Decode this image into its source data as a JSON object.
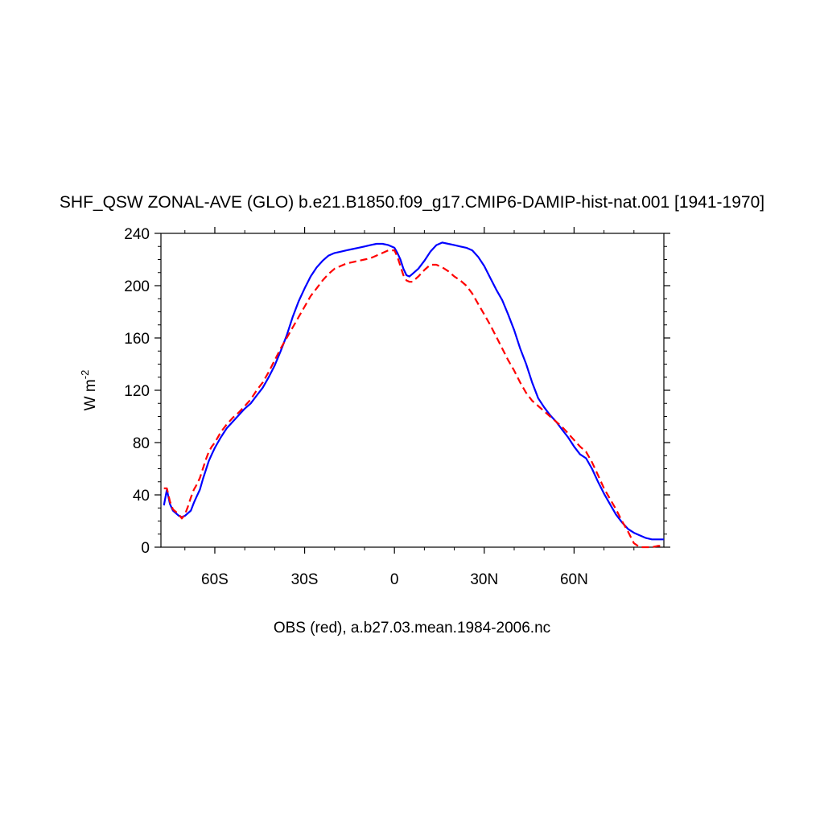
{
  "chart_data": {
    "type": "line",
    "title": "SHF_QSW ZONAL-AVE (GLO) b.e21.B1850.f09_g17.CMIP6-DAMIP-hist-nat.001 [1941-1970]",
    "xlabel": "OBS (red), a.b27.03.mean.1984-2006.nc",
    "ylabel": "W m",
    "ylabel_sup": "-2",
    "xlim": [
      -78,
      90
    ],
    "ylim": [
      0,
      240
    ],
    "x_ticks": [
      {
        "value": -60,
        "label": "60S"
      },
      {
        "value": -30,
        "label": "30S"
      },
      {
        "value": 0,
        "label": "0"
      },
      {
        "value": 30,
        "label": "30N"
      },
      {
        "value": 60,
        "label": "60N"
      }
    ],
    "y_ticks": [
      {
        "value": 0,
        "label": "0"
      },
      {
        "value": 40,
        "label": "40"
      },
      {
        "value": 80,
        "label": "80"
      },
      {
        "value": 120,
        "label": "120"
      },
      {
        "value": 160,
        "label": "160"
      },
      {
        "value": 200,
        "label": "200"
      },
      {
        "value": 240,
        "label": "240"
      }
    ],
    "series": [
      {
        "color": "#0000ff",
        "dash": "solid",
        "points": [
          [
            -77,
            32
          ],
          [
            -76,
            44
          ],
          [
            -75,
            33
          ],
          [
            -74,
            28
          ],
          [
            -73,
            26
          ],
          [
            -72,
            24
          ],
          [
            -71,
            23
          ],
          [
            -70,
            24
          ],
          [
            -69,
            26
          ],
          [
            -68,
            28
          ],
          [
            -67,
            34
          ],
          [
            -66,
            39
          ],
          [
            -65,
            44
          ],
          [
            -64,
            52
          ],
          [
            -63,
            59
          ],
          [
            -62,
            66
          ],
          [
            -61,
            71
          ],
          [
            -60,
            76
          ],
          [
            -58,
            84
          ],
          [
            -56,
            91
          ],
          [
            -54,
            96
          ],
          [
            -52,
            101
          ],
          [
            -50,
            106
          ],
          [
            -48,
            110
          ],
          [
            -46,
            116
          ],
          [
            -44,
            122
          ],
          [
            -42,
            130
          ],
          [
            -40,
            139
          ],
          [
            -38,
            150
          ],
          [
            -36,
            162
          ],
          [
            -34,
            176
          ],
          [
            -32,
            188
          ],
          [
            -30,
            198
          ],
          [
            -28,
            207
          ],
          [
            -26,
            214
          ],
          [
            -24,
            219
          ],
          [
            -22,
            223
          ],
          [
            -20,
            225
          ],
          [
            -18,
            226
          ],
          [
            -16,
            227
          ],
          [
            -14,
            228
          ],
          [
            -12,
            229
          ],
          [
            -10,
            230
          ],
          [
            -8,
            231
          ],
          [
            -6,
            232
          ],
          [
            -4,
            232
          ],
          [
            -2,
            231
          ],
          [
            0,
            229
          ],
          [
            1,
            225
          ],
          [
            2,
            220
          ],
          [
            3,
            213
          ],
          [
            4,
            208
          ],
          [
            5,
            207
          ],
          [
            6,
            209
          ],
          [
            8,
            213
          ],
          [
            10,
            219
          ],
          [
            12,
            226
          ],
          [
            14,
            231
          ],
          [
            16,
            233
          ],
          [
            18,
            232
          ],
          [
            20,
            231
          ],
          [
            22,
            230
          ],
          [
            24,
            229
          ],
          [
            26,
            227
          ],
          [
            28,
            222
          ],
          [
            30,
            215
          ],
          [
            32,
            206
          ],
          [
            34,
            197
          ],
          [
            36,
            189
          ],
          [
            38,
            178
          ],
          [
            40,
            166
          ],
          [
            42,
            152
          ],
          [
            44,
            140
          ],
          [
            46,
            126
          ],
          [
            48,
            114
          ],
          [
            50,
            107
          ],
          [
            52,
            101
          ],
          [
            54,
            96
          ],
          [
            56,
            90
          ],
          [
            58,
            84
          ],
          [
            60,
            77
          ],
          [
            62,
            71
          ],
          [
            64,
            68
          ],
          [
            66,
            60
          ],
          [
            68,
            50
          ],
          [
            70,
            41
          ],
          [
            72,
            33
          ],
          [
            74,
            25
          ],
          [
            76,
            19
          ],
          [
            78,
            14
          ],
          [
            80,
            11
          ],
          [
            82,
            9
          ],
          [
            84,
            7
          ],
          [
            86,
            6
          ],
          [
            88,
            6
          ],
          [
            90,
            6
          ]
        ]
      },
      {
        "color": "#ff0000",
        "dash": "dashed",
        "points": [
          [
            -77,
            45
          ],
          [
            -76,
            45
          ],
          [
            -75,
            35
          ],
          [
            -74,
            29
          ],
          [
            -73,
            27
          ],
          [
            -72,
            25
          ],
          [
            -71,
            22
          ],
          [
            -70,
            25
          ],
          [
            -69,
            31
          ],
          [
            -68,
            38
          ],
          [
            -67,
            44
          ],
          [
            -66,
            48
          ],
          [
            -65,
            53
          ],
          [
            -64,
            60
          ],
          [
            -63,
            67
          ],
          [
            -62,
            73
          ],
          [
            -61,
            77
          ],
          [
            -60,
            80
          ],
          [
            -58,
            88
          ],
          [
            -56,
            94
          ],
          [
            -54,
            99
          ],
          [
            -52,
            103
          ],
          [
            -50,
            108
          ],
          [
            -48,
            113
          ],
          [
            -46,
            120
          ],
          [
            -44,
            126
          ],
          [
            -42,
            134
          ],
          [
            -40,
            143
          ],
          [
            -38,
            152
          ],
          [
            -36,
            160
          ],
          [
            -34,
            168
          ],
          [
            -32,
            176
          ],
          [
            -30,
            184
          ],
          [
            -28,
            192
          ],
          [
            -26,
            198
          ],
          [
            -24,
            204
          ],
          [
            -22,
            209
          ],
          [
            -20,
            213
          ],
          [
            -18,
            215
          ],
          [
            -16,
            217
          ],
          [
            -14,
            218
          ],
          [
            -12,
            219
          ],
          [
            -10,
            220
          ],
          [
            -8,
            221
          ],
          [
            -6,
            223
          ],
          [
            -4,
            225
          ],
          [
            -2,
            227
          ],
          [
            0,
            227
          ],
          [
            1,
            222
          ],
          [
            2,
            215
          ],
          [
            3,
            208
          ],
          [
            4,
            204
          ],
          [
            5,
            203
          ],
          [
            6,
            203
          ],
          [
            8,
            207
          ],
          [
            10,
            212
          ],
          [
            12,
            216
          ],
          [
            14,
            216
          ],
          [
            16,
            214
          ],
          [
            18,
            211
          ],
          [
            20,
            207
          ],
          [
            22,
            204
          ],
          [
            24,
            200
          ],
          [
            26,
            194
          ],
          [
            28,
            186
          ],
          [
            30,
            178
          ],
          [
            32,
            170
          ],
          [
            34,
            161
          ],
          [
            36,
            152
          ],
          [
            38,
            143
          ],
          [
            40,
            135
          ],
          [
            42,
            126
          ],
          [
            44,
            118
          ],
          [
            46,
            112
          ],
          [
            48,
            108
          ],
          [
            50,
            104
          ],
          [
            52,
            100
          ],
          [
            54,
            96
          ],
          [
            56,
            92
          ],
          [
            58,
            87
          ],
          [
            60,
            82
          ],
          [
            62,
            77
          ],
          [
            64,
            73
          ],
          [
            66,
            65
          ],
          [
            68,
            55
          ],
          [
            70,
            45
          ],
          [
            72,
            37
          ],
          [
            74,
            29
          ],
          [
            76,
            20
          ],
          [
            78,
            12
          ],
          [
            80,
            3
          ],
          [
            82,
            0
          ],
          [
            84,
            0
          ],
          [
            86,
            0
          ],
          [
            88,
            1
          ],
          [
            90,
            1
          ]
        ]
      }
    ]
  }
}
